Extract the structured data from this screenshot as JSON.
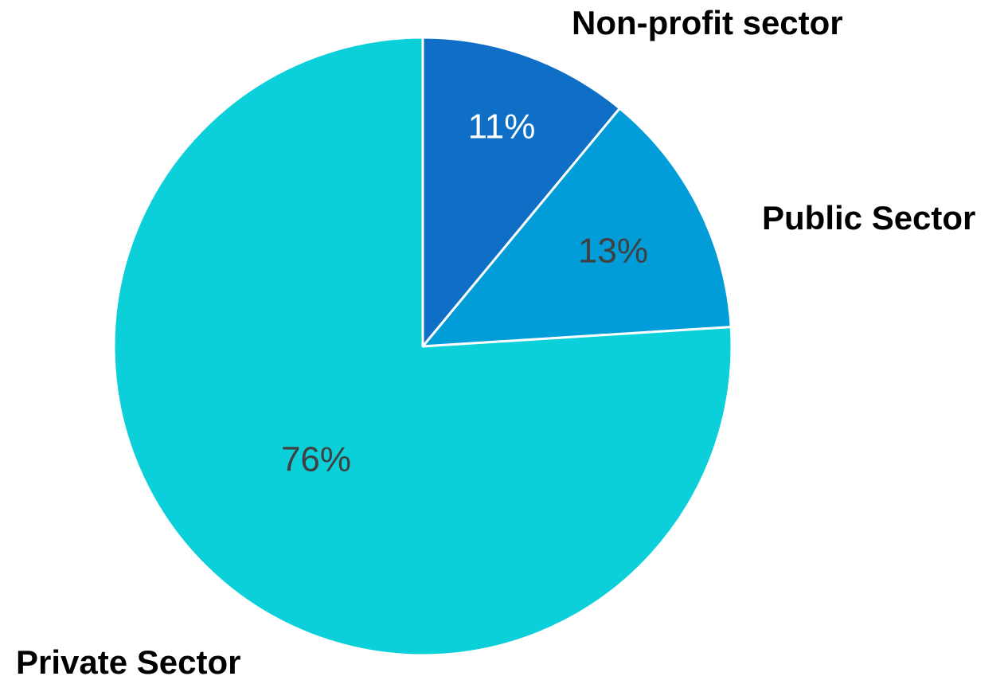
{
  "chart_data": {
    "type": "pie",
    "categories": [
      "Non-profit sector",
      "Public Sector",
      "Private Sector"
    ],
    "values": [
      11,
      13,
      76
    ],
    "value_labels": [
      "11%",
      "13%",
      "76%"
    ],
    "colors": [
      "#0f6fc6",
      "#009dd9",
      "#0bd0d9"
    ]
  }
}
